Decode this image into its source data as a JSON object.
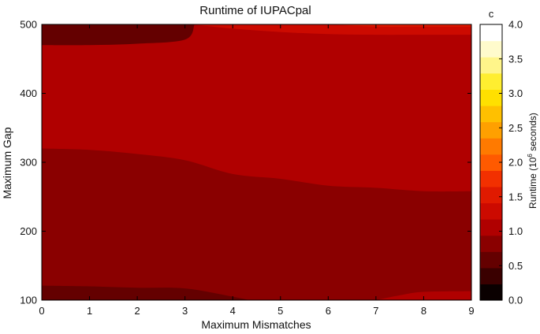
{
  "chart_data": {
    "type": "heatmap",
    "title": "Runtime of IUPACpal",
    "xlabel": "Maximum Mismatches",
    "ylabel": "Maximum Gap",
    "colorbar_label_prefix": "Runtime (10",
    "colorbar_label_exp": "6",
    "colorbar_label_suffix": " seconds)",
    "colorbar_corner_label": "c",
    "xlim": [
      0,
      9
    ],
    "ylim": [
      100,
      500
    ],
    "x_ticks": [
      "0",
      "1",
      "2",
      "3",
      "4",
      "5",
      "6",
      "7",
      "8",
      "9"
    ],
    "y_ticks": [
      "100",
      "200",
      "300",
      "400",
      "500"
    ],
    "colorbar_range": [
      0,
      4.0
    ],
    "colorbar_ticks": [
      "0.0",
      "0.5",
      "1.0",
      "1.5",
      "2.0",
      "2.5",
      "3.0",
      "3.5",
      "4.0"
    ],
    "colorbar_levels": [
      "#0a0000",
      "#3a0000",
      "#640000",
      "#8a0000",
      "#b00000",
      "#cc0a00",
      "#e01a00",
      "#f23000",
      "#ff5a00",
      "#ff7a00",
      "#ffa000",
      "#ffc000",
      "#ffe000",
      "#ffee30",
      "#fff58a",
      "#fffbcc",
      "#ffffff"
    ],
    "regions": [
      {
        "band": "0.75-1.0",
        "color": "#8a0000",
        "boundary_top": [
          [
            0,
            320
          ],
          [
            1,
            318
          ],
          [
            2,
            312
          ],
          [
            3,
            303
          ],
          [
            4,
            283
          ],
          [
            5,
            276
          ],
          [
            6,
            266
          ],
          [
            7,
            263
          ],
          [
            8,
            258
          ],
          [
            9,
            258
          ]
        ]
      },
      {
        "band": "0.5-0.75",
        "color": "#640000",
        "boundary_top": [
          [
            0,
            121
          ],
          [
            1,
            120
          ],
          [
            2,
            118
          ],
          [
            3,
            117
          ],
          [
            4,
            105
          ],
          [
            4.35,
            100
          ]
        ]
      },
      {
        "band": "0.5-0.75",
        "color": "#640000",
        "boundary_bottom": [
          [
            0,
            470
          ],
          [
            1,
            470
          ],
          [
            2,
            472
          ],
          [
            3,
            478
          ],
          [
            3.2,
            500
          ]
        ]
      },
      {
        "band": "1.0-1.25",
        "color": "#b00000",
        "note": "main field"
      },
      {
        "band": "1.25-1.5",
        "color": "#cc0a00",
        "boundary_bottom": [
          [
            3.15,
            500
          ],
          [
            4,
            494
          ],
          [
            5,
            489
          ],
          [
            6,
            486
          ],
          [
            7,
            485
          ],
          [
            8,
            485
          ],
          [
            9,
            485
          ]
        ]
      },
      {
        "band": "1.5-1.75",
        "color": "#e01a00",
        "boundary_bottom": [
          [
            6,
            500
          ],
          [
            7,
            497
          ],
          [
            8,
            497
          ],
          [
            9,
            497
          ]
        ]
      },
      {
        "band": "1.0-1.25",
        "color": "#b00000",
        "boundary_top": [
          [
            7,
            100
          ],
          [
            7.5,
            107
          ],
          [
            8,
            112
          ],
          [
            9,
            113
          ]
        ]
      }
    ]
  }
}
